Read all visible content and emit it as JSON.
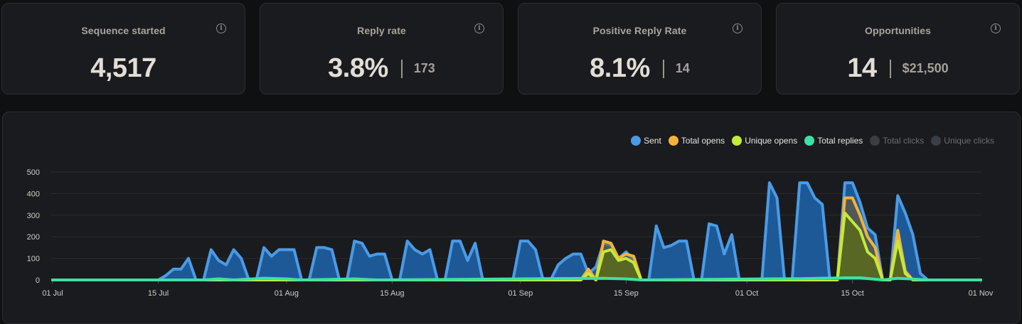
{
  "stats": [
    {
      "title": "Sequence started",
      "value": "4,517",
      "secondary": ""
    },
    {
      "title": "Reply rate",
      "value": "3.8%",
      "secondary": "173"
    },
    {
      "title": "Positive Reply Rate",
      "value": "8.1%",
      "secondary": "14"
    },
    {
      "title": "Opportunities",
      "value": "14",
      "secondary": "$21,500"
    }
  ],
  "legend": [
    {
      "label": "Sent",
      "color": "#4a9be6",
      "active": true
    },
    {
      "label": "Total opens",
      "color": "#f0b43c",
      "active": true
    },
    {
      "label": "Unique opens",
      "color": "#c4ea3a",
      "active": true
    },
    {
      "label": "Total replies",
      "color": "#3fe0a4",
      "active": true
    },
    {
      "label": "Total clicks",
      "color": "#3a3d42",
      "active": false
    },
    {
      "label": "Unique clicks",
      "color": "#3a3d42",
      "active": false
    }
  ],
  "chart_data": {
    "type": "area",
    "ylim": [
      0,
      500
    ],
    "yticks": [
      0,
      100,
      200,
      300,
      400,
      500
    ],
    "xticks": [
      {
        "label": "01 Jul",
        "day": 0
      },
      {
        "label": "15 Jul",
        "day": 14
      },
      {
        "label": "01 Aug",
        "day": 31
      },
      {
        "label": "15 Aug",
        "day": 45
      },
      {
        "label": "01 Sep",
        "day": 62
      },
      {
        "label": "15 Sep",
        "day": 76
      },
      {
        "label": "01 Oct",
        "day": 92
      },
      {
        "label": "15 Oct",
        "day": 106
      },
      {
        "label": "01 Nov",
        "day": 123
      }
    ],
    "series": [
      {
        "name": "Sent",
        "points": [
          [
            0,
            0
          ],
          [
            14,
            0
          ],
          [
            15,
            20
          ],
          [
            16,
            50
          ],
          [
            17,
            50
          ],
          [
            18,
            100
          ],
          [
            19,
            0
          ],
          [
            20,
            0
          ],
          [
            21,
            140
          ],
          [
            22,
            90
          ],
          [
            23,
            70
          ],
          [
            24,
            140
          ],
          [
            25,
            100
          ],
          [
            26,
            0
          ],
          [
            27,
            0
          ],
          [
            28,
            150
          ],
          [
            29,
            110
          ],
          [
            30,
            140
          ],
          [
            31,
            140
          ],
          [
            32,
            140
          ],
          [
            33,
            0
          ],
          [
            34,
            0
          ],
          [
            35,
            150
          ],
          [
            36,
            150
          ],
          [
            37,
            140
          ],
          [
            38,
            0
          ],
          [
            39,
            0
          ],
          [
            40,
            180
          ],
          [
            41,
            170
          ],
          [
            42,
            110
          ],
          [
            43,
            120
          ],
          [
            44,
            120
          ],
          [
            45,
            0
          ],
          [
            46,
            0
          ],
          [
            47,
            180
          ],
          [
            48,
            140
          ],
          [
            49,
            120
          ],
          [
            50,
            140
          ],
          [
            51,
            0
          ],
          [
            52,
            0
          ],
          [
            53,
            180
          ],
          [
            54,
            180
          ],
          [
            55,
            90
          ],
          [
            56,
            170
          ],
          [
            57,
            0
          ],
          [
            58,
            0
          ],
          [
            59,
            0
          ],
          [
            60,
            0
          ],
          [
            61,
            0
          ],
          [
            62,
            180
          ],
          [
            63,
            180
          ],
          [
            64,
            140
          ],
          [
            65,
            0
          ],
          [
            66,
            0
          ],
          [
            67,
            70
          ],
          [
            68,
            100
          ],
          [
            69,
            120
          ],
          [
            70,
            120
          ],
          [
            71,
            30
          ],
          [
            72,
            60
          ],
          [
            73,
            170
          ],
          [
            74,
            160
          ],
          [
            75,
            100
          ],
          [
            76,
            130
          ],
          [
            77,
            90
          ],
          [
            78,
            0
          ],
          [
            79,
            0
          ],
          [
            80,
            250
          ],
          [
            81,
            150
          ],
          [
            82,
            160
          ],
          [
            83,
            180
          ],
          [
            84,
            180
          ],
          [
            85,
            0
          ],
          [
            86,
            0
          ],
          [
            87,
            260
          ],
          [
            88,
            250
          ],
          [
            89,
            120
          ],
          [
            90,
            210
          ],
          [
            91,
            0
          ],
          [
            92,
            0
          ],
          [
            93,
            0
          ],
          [
            94,
            0
          ],
          [
            95,
            450
          ],
          [
            96,
            380
          ],
          [
            97,
            0
          ],
          [
            98,
            0
          ],
          [
            99,
            450
          ],
          [
            100,
            450
          ],
          [
            101,
            380
          ],
          [
            102,
            350
          ],
          [
            103,
            0
          ],
          [
            104,
            0
          ],
          [
            105,
            450
          ],
          [
            106,
            450
          ],
          [
            107,
            360
          ],
          [
            108,
            240
          ],
          [
            109,
            210
          ],
          [
            110,
            0
          ],
          [
            111,
            0
          ],
          [
            112,
            390
          ],
          [
            113,
            310
          ],
          [
            114,
            210
          ],
          [
            115,
            30
          ],
          [
            116,
            0
          ],
          [
            117,
            0
          ],
          [
            123,
            0
          ]
        ]
      },
      {
        "name": "Total opens",
        "points": [
          [
            0,
            0
          ],
          [
            70,
            0
          ],
          [
            71,
            50
          ],
          [
            72,
            0
          ],
          [
            73,
            180
          ],
          [
            74,
            170
          ],
          [
            75,
            100
          ],
          [
            76,
            120
          ],
          [
            77,
            110
          ],
          [
            78,
            0
          ],
          [
            104,
            0
          ],
          [
            105,
            380
          ],
          [
            106,
            380
          ],
          [
            107,
            300
          ],
          [
            108,
            200
          ],
          [
            109,
            150
          ],
          [
            110,
            0
          ],
          [
            111,
            0
          ],
          [
            112,
            230
          ],
          [
            113,
            40
          ],
          [
            114,
            0
          ],
          [
            123,
            0
          ]
        ]
      },
      {
        "name": "Unique opens",
        "points": [
          [
            0,
            0
          ],
          [
            70,
            0
          ],
          [
            71,
            30
          ],
          [
            72,
            0
          ],
          [
            73,
            130
          ],
          [
            74,
            140
          ],
          [
            75,
            90
          ],
          [
            76,
            100
          ],
          [
            77,
            80
          ],
          [
            78,
            0
          ],
          [
            104,
            0
          ],
          [
            105,
            310
          ],
          [
            106,
            270
          ],
          [
            107,
            230
          ],
          [
            108,
            130
          ],
          [
            109,
            100
          ],
          [
            110,
            0
          ],
          [
            111,
            0
          ],
          [
            112,
            180
          ],
          [
            113,
            30
          ],
          [
            114,
            0
          ],
          [
            123,
            0
          ]
        ]
      },
      {
        "name": "Total replies",
        "points": [
          [
            0,
            0
          ],
          [
            20,
            0
          ],
          [
            22,
            5
          ],
          [
            24,
            0
          ],
          [
            28,
            8
          ],
          [
            31,
            5
          ],
          [
            33,
            0
          ],
          [
            40,
            5
          ],
          [
            43,
            0
          ],
          [
            73,
            8
          ],
          [
            76,
            5
          ],
          [
            78,
            0
          ],
          [
            95,
            5
          ],
          [
            99,
            6
          ],
          [
            105,
            10
          ],
          [
            107,
            10
          ],
          [
            110,
            0
          ],
          [
            112,
            8
          ],
          [
            116,
            0
          ],
          [
            123,
            0
          ]
        ]
      }
    ]
  }
}
